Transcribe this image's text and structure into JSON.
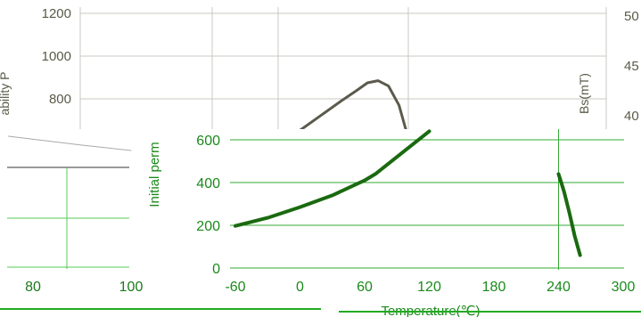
{
  "chart_data": [
    {
      "type": "line",
      "title": "",
      "xlabel": "",
      "ylabel": "ability P",
      "y2label": "Bs(mT)",
      "ylim": [
        0,
        1200
      ],
      "yticks": [
        "800",
        "1000",
        "1200"
      ],
      "y2ticks": [
        "40",
        "45",
        "50"
      ],
      "colors": {
        "curve": "#5c5a4c",
        "tick": "#5a5a48",
        "grid": "#c8c8c0"
      },
      "series": [
        {
          "values": [
            [
              -20,
              580
            ],
            [
              0,
              650
            ],
            [
              20,
              720
            ],
            [
              40,
              790
            ],
            [
              55,
              840
            ],
            [
              65,
              875
            ],
            [
              75,
              885
            ],
            [
              85,
              860
            ],
            [
              95,
              770
            ],
            [
              103,
              630
            ]
          ]
        }
      ]
    },
    {
      "type": "line",
      "title": "",
      "xlabel": "",
      "ylabel": "",
      "xlim": [
        75,
        105
      ],
      "xticks": [
        "80",
        "100"
      ],
      "colors": {
        "tick": "#1a7a1a",
        "grid": "#55cc55"
      },
      "series": [
        {
          "values": [
            [
              75,
              640
            ],
            [
              90,
              615
            ],
            [
              100,
              600
            ]
          ]
        }
      ]
    },
    {
      "type": "line",
      "title": "",
      "xlabel": "Temperature(℃)",
      "ylabel": "Initial perm",
      "xlim": [
        -60,
        300
      ],
      "ylim": [
        0,
        650
      ],
      "xticks": [
        "-60",
        "0",
        "60",
        "120",
        "180",
        "240",
        "300"
      ],
      "yticks": [
        "0",
        "200",
        "400",
        "600"
      ],
      "colors": {
        "curve": "#1a6a10",
        "tick": "#1a8a1a",
        "grid": "#33aa33"
      },
      "series": [
        {
          "values": [
            [
              -60,
              197
            ],
            [
              -30,
              235
            ],
            [
              0,
              285
            ],
            [
              30,
              340
            ],
            [
              60,
              410
            ],
            [
              70,
              440
            ],
            [
              90,
              520
            ],
            [
              120,
              640
            ]
          ]
        },
        {
          "values": [
            [
              240,
              440
            ],
            [
              245,
              360
            ],
            [
              250,
              260
            ],
            [
              255,
              150
            ],
            [
              260,
              60
            ]
          ]
        }
      ]
    }
  ]
}
